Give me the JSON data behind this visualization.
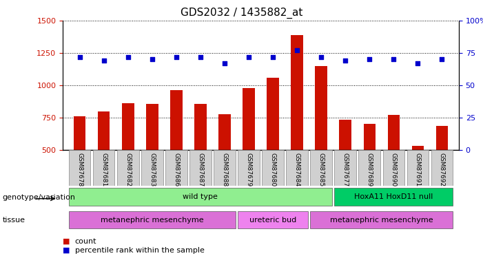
{
  "title": "GDS2032 / 1435882_at",
  "samples": [
    "GSM87678",
    "GSM87681",
    "GSM87682",
    "GSM87683",
    "GSM87686",
    "GSM87687",
    "GSM87688",
    "GSM87679",
    "GSM87680",
    "GSM87684",
    "GSM87685",
    "GSM87677",
    "GSM87689",
    "GSM87690",
    "GSM87691",
    "GSM87692"
  ],
  "counts": [
    760,
    795,
    860,
    855,
    960,
    855,
    775,
    975,
    1060,
    1390,
    1150,
    730,
    700,
    770,
    530,
    685
  ],
  "percentile": [
    72,
    69,
    72,
    70,
    72,
    72,
    67,
    72,
    72,
    77,
    72,
    69,
    70,
    70,
    67,
    70
  ],
  "ylim_left": [
    500,
    1500
  ],
  "ylim_right": [
    0,
    100
  ],
  "yticks_left": [
    500,
    750,
    1000,
    1250,
    1500
  ],
  "yticks_right": [
    0,
    25,
    50,
    75,
    100
  ],
  "bar_color": "#cc1100",
  "dot_color": "#0000cc",
  "bg_color": "#ffffff",
  "grid_color": "#000000",
  "tick_label_bg": "#d0d0d0",
  "genotype_groups": [
    {
      "label": "wild type",
      "start": 0,
      "end": 10,
      "color": "#90ee90"
    },
    {
      "label": "HoxA11 HoxD11 null",
      "start": 11,
      "end": 15,
      "color": "#00cc66"
    }
  ],
  "tissue_groups": [
    {
      "label": "metanephric mesenchyme",
      "start": 0,
      "end": 6,
      "color": "#da70d6"
    },
    {
      "label": "ureteric bud",
      "start": 7,
      "end": 9,
      "color": "#ee82ee"
    },
    {
      "label": "metanephric mesenchyme",
      "start": 10,
      "end": 15,
      "color": "#da70d6"
    }
  ],
  "legend_count_label": "count",
  "legend_pct_label": "percentile rank within the sample",
  "genotype_label": "genotype/variation",
  "tissue_label": "tissue"
}
